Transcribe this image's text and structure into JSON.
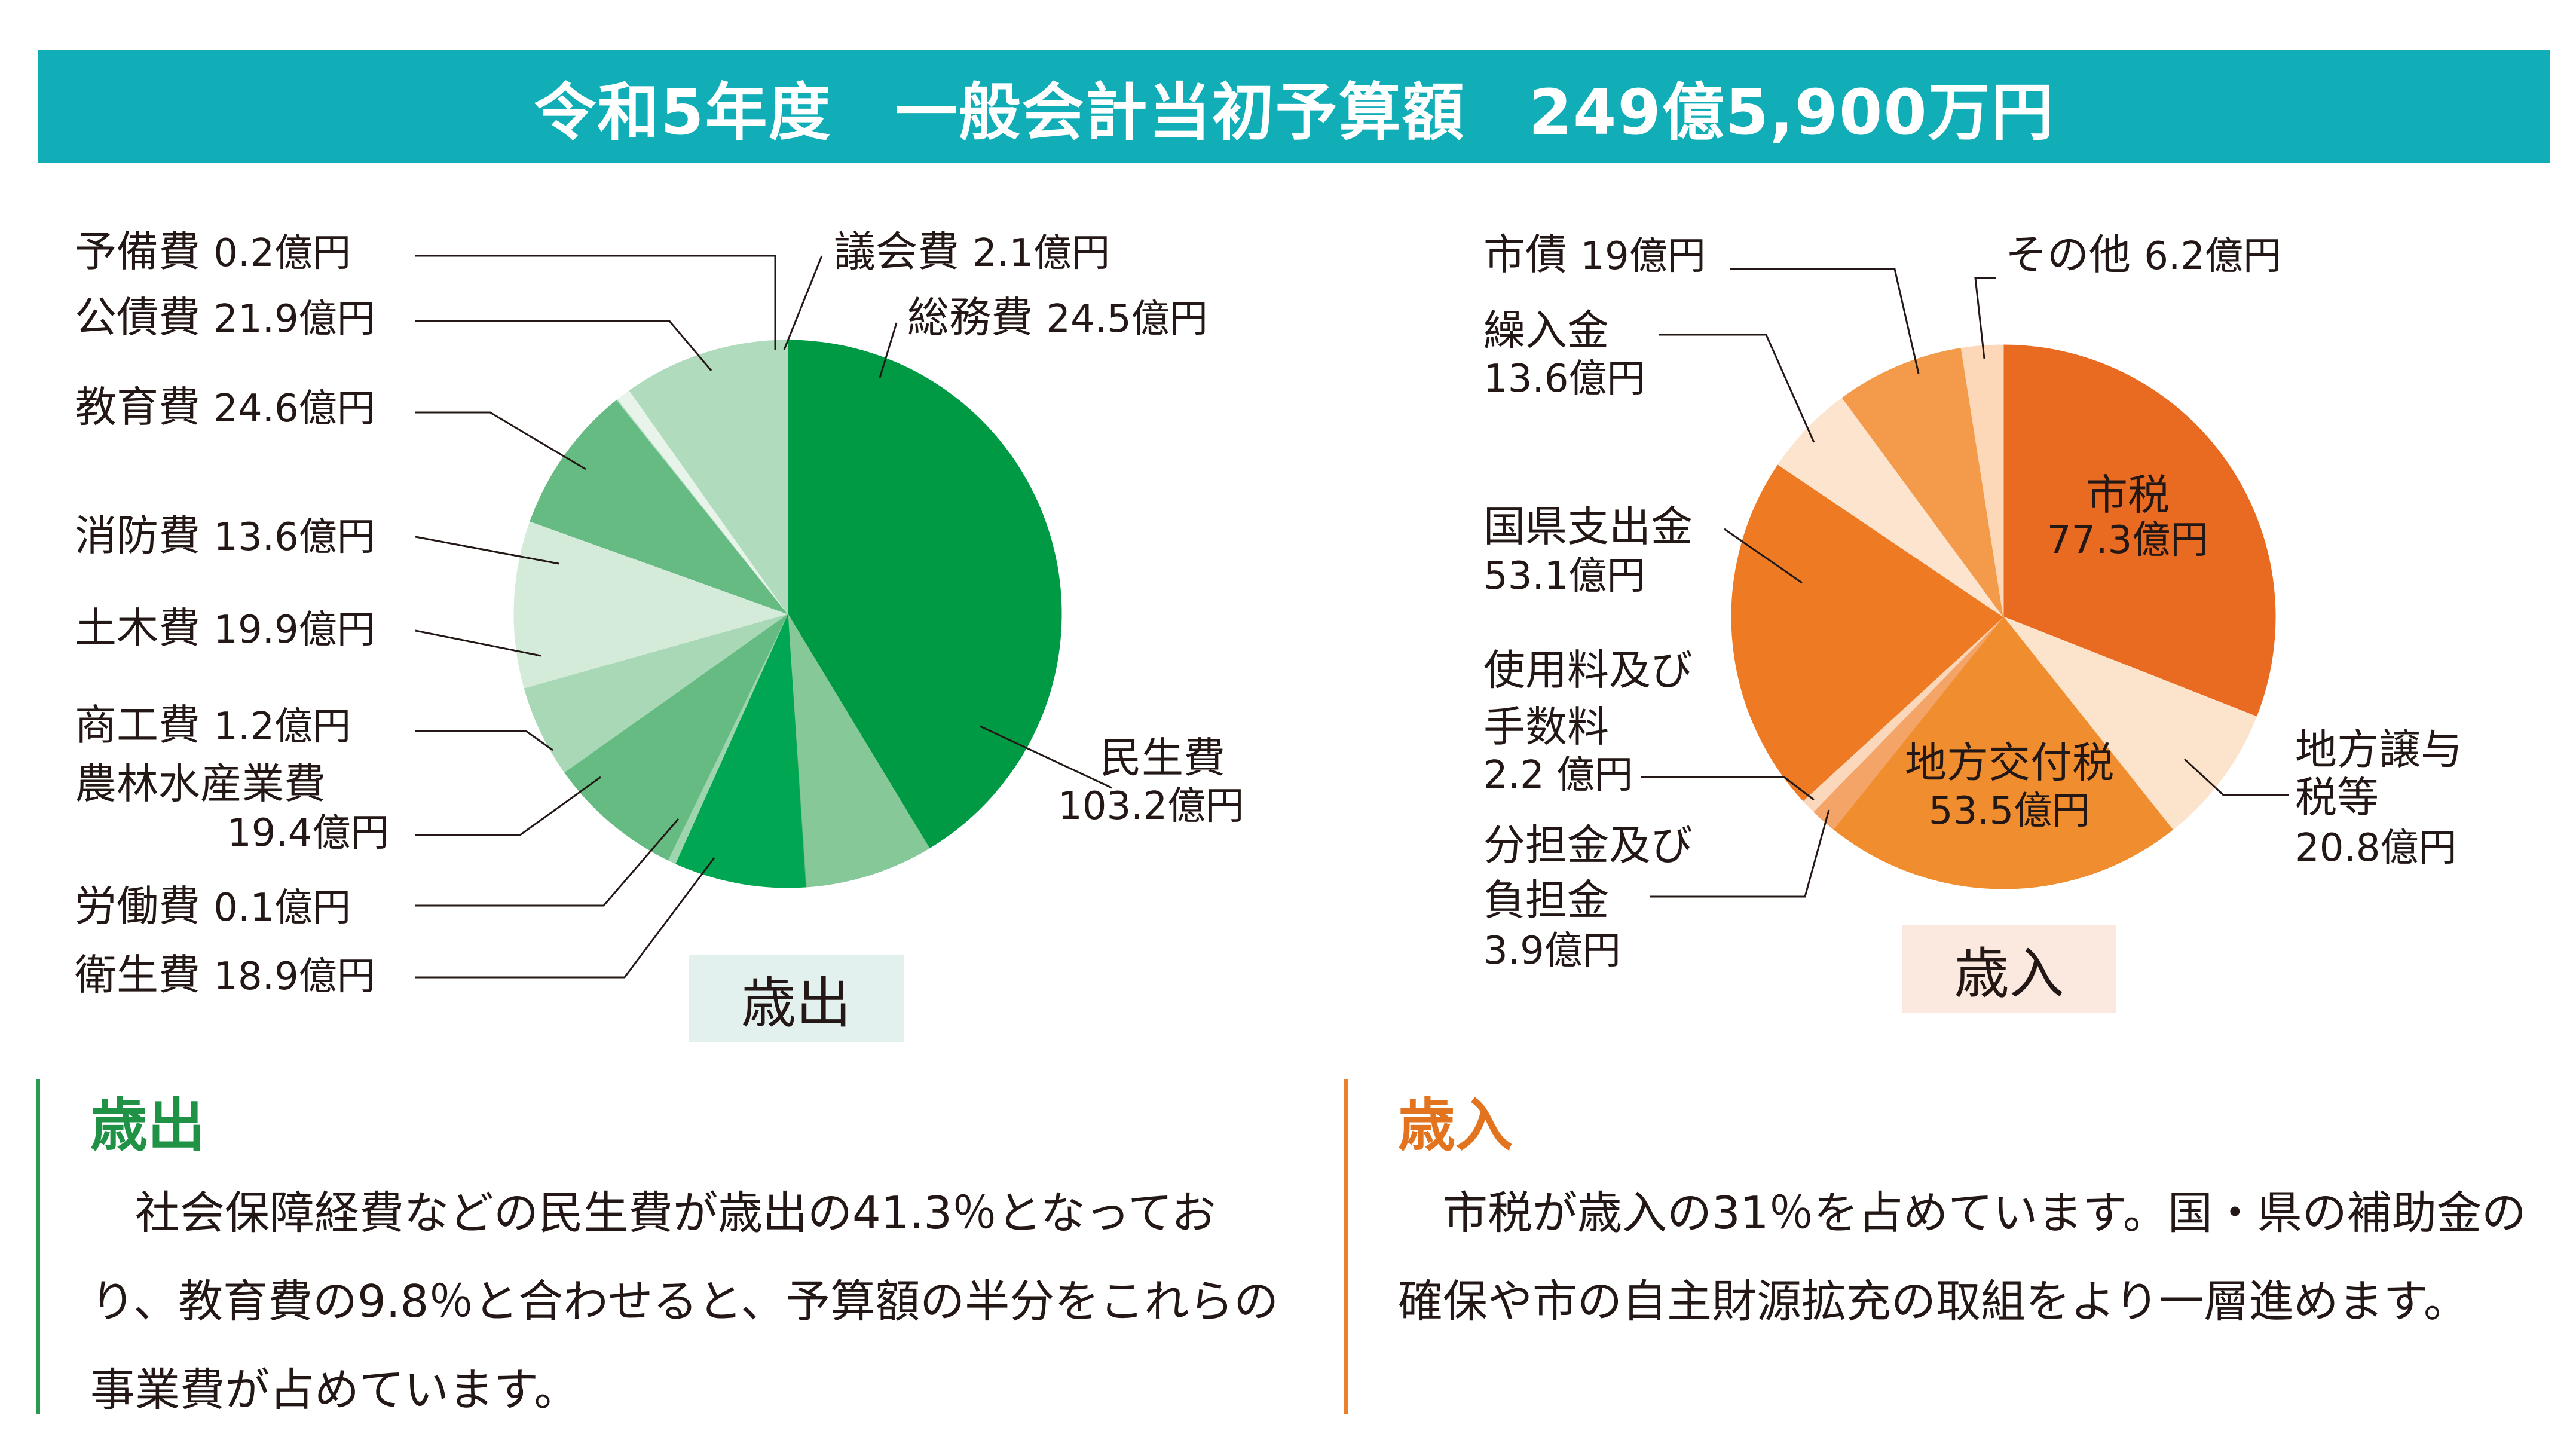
{
  "header": {
    "title": "令和5年度　一般会計当初予算額　249億5,900万円"
  },
  "chart_data": [
    {
      "type": "pie",
      "caption": "歳出",
      "unit": "億円",
      "slices": [
        {
          "label": "民生費",
          "value": 103.2,
          "value_text": "103.2億円",
          "color": "#009944"
        },
        {
          "label": "衛生費",
          "value": 18.9,
          "value_text": "18.9億円",
          "color": "#86c898"
        },
        {
          "label": "労働費",
          "value": 0.1,
          "value_text": "0.1億円",
          "color": "#5fba7d"
        },
        {
          "label": "農林水産業費",
          "value": 19.4,
          "value_text": "19.4億円",
          "color": "#00a651"
        },
        {
          "label": "商工費",
          "value": 1.2,
          "value_text": "1.2億円",
          "color": "#9fd5ae"
        },
        {
          "label": "土木費",
          "value": 19.9,
          "value_text": "19.9億円",
          "color": "#66bb82"
        },
        {
          "label": "消防費",
          "value": 13.6,
          "value_text": "13.6億円",
          "color": "#a8d8b6"
        },
        {
          "label": "教育費",
          "value": 24.6,
          "value_text": "24.6億円",
          "color": "#d5ebda"
        },
        {
          "label": "公債費",
          "value": 21.9,
          "value_text": "21.9億円",
          "color": "#66bb82"
        },
        {
          "label": "予備費",
          "value": 0.2,
          "value_text": "0.2億円",
          "color": "#b8dfc4"
        },
        {
          "label": "議会費",
          "value": 2.1,
          "value_text": "2.1億円",
          "color": "#e8f4ea"
        },
        {
          "label": "総務費",
          "value": 24.5,
          "value_text": "24.5億円",
          "color": "#b1dbbd"
        }
      ]
    },
    {
      "type": "pie",
      "caption": "歳入",
      "unit": "億円",
      "slices": [
        {
          "label": "市税",
          "value": 77.3,
          "value_text": "77.3億円",
          "color": "#e96b22"
        },
        {
          "label": "地方譲与税等",
          "value": 20.8,
          "value_text": "20.8億円",
          "color": "#fce3cc"
        },
        {
          "label": "地方交付税",
          "value": 53.5,
          "value_text": "53.5億円",
          "color": "#f08d2e"
        },
        {
          "label": "分担金及び負担金",
          "value": 3.9,
          "value_text": "3.9億円",
          "color": "#f4a467"
        },
        {
          "label": "使用料及び手数料",
          "value": 2.2,
          "value_text": "2.2 億円",
          "color": "#fbd8bc"
        },
        {
          "label": "国県支出金",
          "value": 53.1,
          "value_text": "53.1億円",
          "color": "#ee7b24"
        },
        {
          "label": "繰入金",
          "value": 13.6,
          "value_text": "13.6億円",
          "color": "#fde4cf"
        },
        {
          "label": "市債",
          "value": 19,
          "value_text": "19億円",
          "color": "#f39b4a"
        },
        {
          "label": "その他",
          "value": 6.2,
          "value_text": "6.2億円",
          "color": "#fcd7b8"
        }
      ]
    }
  ],
  "notes": {
    "expenditure": {
      "heading": "歳出",
      "text": "　社会保障経費などの民生費が歳出の41.3％となっており、教育費の9.8％と合わせると、予算額の半分をこれらの事業費が占めています。"
    },
    "revenue": {
      "heading": "歳入",
      "text": "　市税が歳入の31％を占めています。国・県の補助金の確保や市の自主財源拡充の取組をより一層進めます。"
    }
  }
}
